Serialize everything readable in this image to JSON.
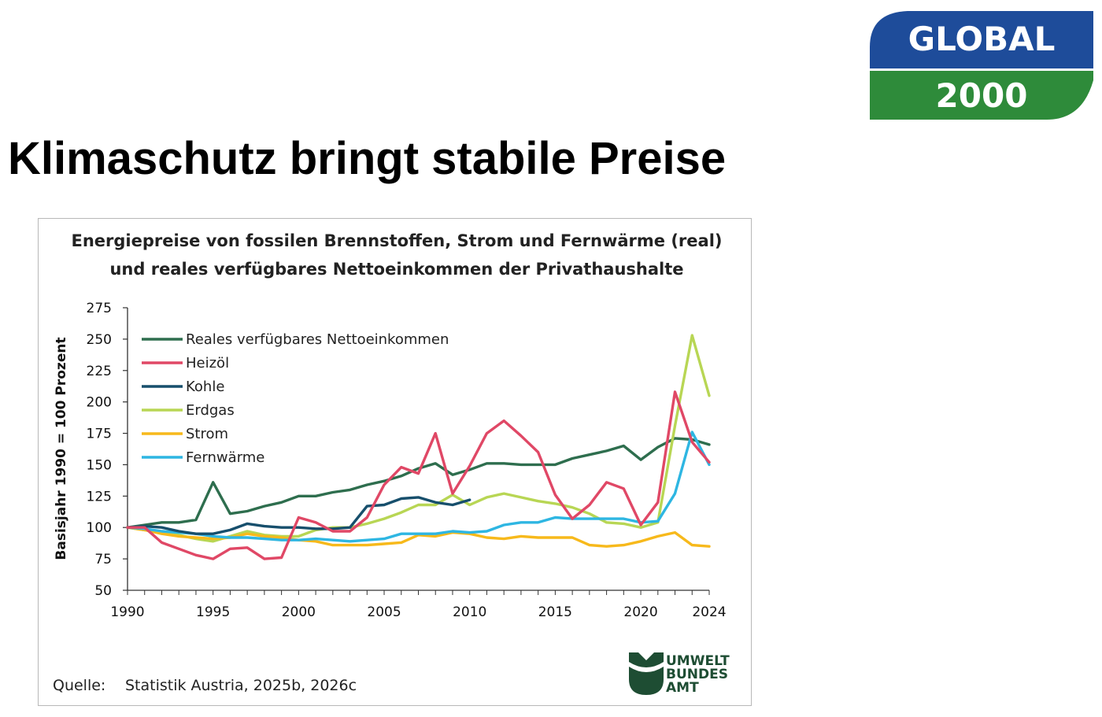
{
  "slide": {
    "title": "Klimaschutz bringt stabile Preise"
  },
  "logo": {
    "line1": "GLOBAL",
    "line2": "2000",
    "colors": {
      "top": "#1e4c9a",
      "bottom": "#2e8b3a"
    }
  },
  "publisher_logo": {
    "lines": [
      "UMWELT",
      "BUNDES",
      "AMT"
    ],
    "color": "#1e4d33"
  },
  "source": {
    "label": "Quelle:",
    "text": "Statistik Austria, 2025b, 2026c"
  },
  "chart_data": {
    "type": "line",
    "title": [
      "Energiepreise von fossilen Brennstoffen, Strom und Fernwärme (real)",
      "und reales verfügbares Nettoeinkommen der Privathaushalte"
    ],
    "ylabel": "Basisjahr 1990 = 100 Prozent",
    "xlabel": "",
    "xlim": [
      1990,
      2024
    ],
    "ylim": [
      50,
      275
    ],
    "x_ticks": [
      1990,
      1995,
      2000,
      2005,
      2010,
      2015,
      2020,
      2024
    ],
    "y_ticks": [
      50,
      75,
      100,
      125,
      150,
      175,
      200,
      225,
      250,
      275
    ],
    "legend_position": "top-left",
    "grid": false,
    "x": [
      1990,
      1991,
      1992,
      1993,
      1994,
      1995,
      1996,
      1997,
      1998,
      1999,
      2000,
      2001,
      2002,
      2003,
      2004,
      2005,
      2006,
      2007,
      2008,
      2009,
      2010,
      2011,
      2012,
      2013,
      2014,
      2015,
      2016,
      2017,
      2018,
      2019,
      2020,
      2021,
      2022,
      2023,
      2024
    ],
    "series": [
      {
        "name": "Reales verfügbares Nettoeinkommen",
        "color": "#2e6e4e",
        "values": [
          100,
          102,
          104,
          104,
          106,
          136,
          111,
          113,
          117,
          120,
          125,
          125,
          128,
          130,
          134,
          137,
          141,
          147,
          151,
          142,
          146,
          151,
          151,
          150,
          150,
          150,
          155,
          158,
          161,
          165,
          154,
          164,
          171,
          170,
          166
        ]
      },
      {
        "name": "Heizöl",
        "color": "#e04866",
        "values": [
          100,
          100,
          88,
          83,
          78,
          75,
          83,
          84,
          75,
          76,
          108,
          104,
          97,
          97,
          108,
          134,
          148,
          143,
          175,
          127,
          149,
          175,
          185,
          173,
          160,
          126,
          107,
          118,
          136,
          131,
          102,
          120,
          208,
          168,
          152
        ]
      },
      {
        "name": "Kohle",
        "color": "#174f6c",
        "values": [
          100,
          101,
          100,
          97,
          95,
          95,
          98,
          103,
          101,
          100,
          100,
          99,
          99,
          100,
          117,
          118,
          123,
          124,
          120,
          118,
          122,
          null,
          null,
          null,
          null,
          null,
          null,
          null,
          null,
          null,
          null,
          null,
          null,
          null,
          null
        ]
      },
      {
        "name": "Erdgas",
        "color": "#b8d654",
        "values": [
          100,
          98,
          96,
          94,
          91,
          89,
          93,
          97,
          94,
          93,
          93,
          98,
          100,
          100,
          103,
          107,
          112,
          118,
          118,
          126,
          118,
          124,
          127,
          124,
          121,
          119,
          116,
          111,
          104,
          103,
          100,
          104,
          181,
          253,
          205
        ]
      },
      {
        "name": "Strom",
        "color": "#f7b91b",
        "values": [
          100,
          98,
          95,
          93,
          92,
          91,
          92,
          95,
          93,
          92,
          90,
          89,
          86,
          86,
          86,
          87,
          88,
          94,
          93,
          96,
          95,
          92,
          91,
          93,
          92,
          92,
          92,
          86,
          85,
          86,
          89,
          93,
          96,
          86,
          85
        ]
      },
      {
        "name": "Fernwärme",
        "color": "#2eb6e2",
        "values": [
          100,
          99,
          97,
          96,
          95,
          93,
          92,
          92,
          91,
          90,
          90,
          91,
          90,
          89,
          90,
          91,
          95,
          95,
          95,
          97,
          96,
          97,
          102,
          104,
          104,
          108,
          107,
          107,
          107,
          107,
          104,
          105,
          127,
          176,
          150
        ]
      }
    ]
  }
}
